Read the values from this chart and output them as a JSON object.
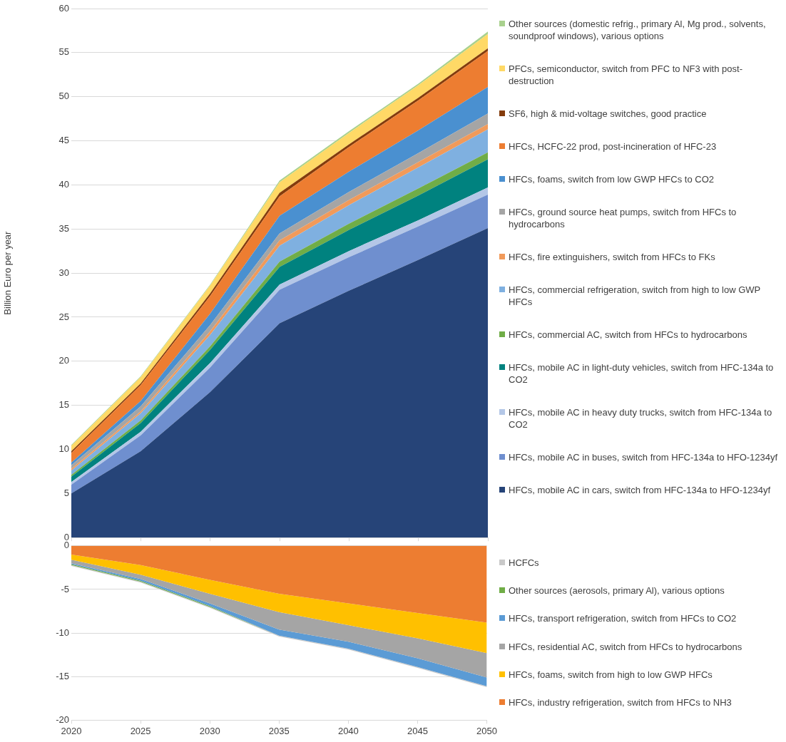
{
  "chart_data": [
    {
      "type": "area",
      "stacked": true,
      "ylabel": "Billion Euro per year",
      "x": [
        2020,
        2025,
        2030,
        2035,
        2040,
        2045,
        2050
      ],
      "xlim": [
        2020,
        2050
      ],
      "xticks": [
        2020,
        2025,
        2030,
        2035,
        2040,
        2045,
        2050
      ],
      "ylim": [
        0,
        60
      ],
      "yticks": [
        0,
        5,
        10,
        15,
        20,
        25,
        30,
        35,
        40,
        45,
        50,
        55,
        60
      ],
      "tick_labels": "y",
      "grid": "y",
      "legend": "right",
      "series": [
        {
          "name": "HFCs, mobile AC in cars, switch from HFC-134a to HFO-1234yf",
          "color": "#264478",
          "values": [
            5.0,
            9.8,
            16.5,
            24.3,
            28.0,
            31.5,
            35.1
          ]
        },
        {
          "name": "HFCs, mobile AC in buses, switch from HFC-134a to HFO-1234yf",
          "color": "#6f8fcf",
          "values": [
            1.0,
            1.8,
            2.8,
            3.8,
            3.8,
            3.8,
            3.8
          ]
        },
        {
          "name": "HFCs, mobile AC in heavy duty trucks, switch from HFC-134a to CO2",
          "color": "#b4c7e7",
          "values": [
            0.3,
            0.4,
            0.5,
            0.6,
            0.7,
            0.7,
            0.8
          ]
        },
        {
          "name": "HFCs, mobile AC in light-duty vehicles, switch from HFC-134a to CO2",
          "color": "#00827f",
          "values": [
            0.6,
            1.0,
            1.5,
            2.0,
            2.4,
            2.8,
            3.2
          ]
        },
        {
          "name": "HFCs, commercial AC, switch from HFCs to hydrocarbons",
          "color": "#70ad47",
          "values": [
            0.2,
            0.3,
            0.4,
            0.6,
            0.7,
            0.8,
            0.8
          ]
        },
        {
          "name": "HFCs, commercial refrigeration, switch from high to low GWP HFCs",
          "color": "#7fb0e0",
          "values": [
            0.5,
            0.8,
            1.3,
            1.8,
            2.1,
            2.4,
            2.6
          ]
        },
        {
          "name": "HFCs, fire extinguishers, switch from HFCs to FKs",
          "color": "#f19a5a",
          "values": [
            0.2,
            0.2,
            0.4,
            0.6,
            0.6,
            0.6,
            0.6
          ]
        },
        {
          "name": "HFCs, ground source heat pumps, switch from HFCs to hydrocarbons",
          "color": "#a5a5a5",
          "values": [
            0.4,
            0.6,
            0.7,
            0.8,
            0.9,
            1.0,
            1.2
          ]
        },
        {
          "name": "HFCs, foams, switch from low GWP HFCs to CO2",
          "color": "#4a90d0",
          "values": [
            0.3,
            0.6,
            1.3,
            2.0,
            2.3,
            2.6,
            3.0
          ]
        },
        {
          "name": "HFCs, HCFC-22 prod, post-incineration of HFC-23",
          "color": "#ed7d31",
          "values": [
            1.1,
            1.8,
            2.0,
            2.2,
            2.8,
            3.4,
            4.1
          ]
        },
        {
          "name": "SF6, high & mid-voltage switches, good practice",
          "color": "#843c0c",
          "values": [
            0.2,
            0.2,
            0.3,
            0.4,
            0.3,
            0.3,
            0.3
          ]
        },
        {
          "name": "PFCs, semiconductor, switch from PFC to NF3 with post-destruction",
          "color": "#ffd966",
          "values": [
            0.6,
            0.7,
            0.9,
            1.2,
            1.3,
            1.4,
            1.6
          ]
        },
        {
          "name": "Other sources (domestic refrig., primary Al, Mg prod., solvents, soundproof windows), various options",
          "color": "#a9d18e",
          "values": [
            0.1,
            0.1,
            0.1,
            0.2,
            0.2,
            0.2,
            0.3
          ]
        }
      ]
    },
    {
      "type": "area",
      "stacked": true,
      "x": [
        2020,
        2025,
        2030,
        2035,
        2040,
        2045,
        2050
      ],
      "xlim": [
        2020,
        2050
      ],
      "xticks": [
        2020,
        2025,
        2030,
        2035,
        2040,
        2045,
        2050
      ],
      "ylim": [
        -20,
        0
      ],
      "yticks": [
        -20,
        -15,
        -10,
        -5,
        0
      ],
      "grid": "y",
      "legend": "right",
      "series": [
        {
          "name": "HFCs, industry refrigeration, switch from HFCs to NH3",
          "color": "#ed7d31",
          "values": [
            -1.0,
            -2.2,
            -3.9,
            -5.5,
            -6.6,
            -7.7,
            -8.8
          ]
        },
        {
          "name": "HFCs, foams, switch from high to low GWP HFCs",
          "color": "#ffc000",
          "values": [
            -0.6,
            -1.1,
            -1.6,
            -2.1,
            -2.5,
            -2.9,
            -3.5
          ]
        },
        {
          "name": "HFCs,  residential AC, switch from HFCs to hydrocarbons",
          "color": "#a5a5a5",
          "values": [
            -0.4,
            -0.5,
            -1.1,
            -2.0,
            -1.9,
            -2.3,
            -2.8
          ]
        },
        {
          "name": "HFCs,  transport refrigeration, switch from HFCs to CO2",
          "color": "#5b9bd5",
          "values": [
            -0.1,
            -0.2,
            -0.3,
            -0.7,
            -0.8,
            -1.0,
            -1.0
          ]
        },
        {
          "name": "Other sources (aerosols, primary Al), various options",
          "color": "#70ad47",
          "values": [
            -0.1,
            -0.1,
            -0.1,
            0,
            0,
            0,
            0
          ]
        },
        {
          "name": "HCFCs",
          "color": "#c9c9c9",
          "values": [
            -0.1,
            -0.1,
            -0.1,
            -0.1,
            -0.1,
            -0.1,
            -0.1
          ]
        }
      ]
    }
  ]
}
